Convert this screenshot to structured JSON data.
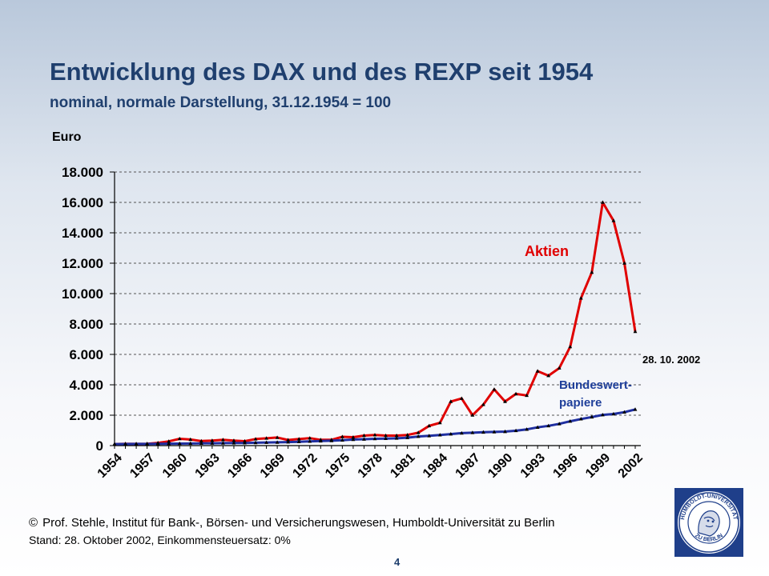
{
  "slide": {
    "title": "Entwicklung des DAX und des REXP seit 1954",
    "subtitle": "nominal, normale Darstellung, 31.12.1954 = 100",
    "copyright_symbol": "©",
    "copyright": "Prof. Stehle, Institut für Bank-, Börsen- und Versicherungswesen, Humboldt-Universität zu Berlin",
    "stand": "Stand: 28. Oktober 2002, Einkommensteuersatz: 0%",
    "page_number": "4",
    "logo_text": "HUMBOLDT-UNIVERSITÄT ZU BERLIN"
  },
  "chart_data": {
    "type": "line",
    "title": "Entwicklung des DAX und des REXP seit 1954",
    "ylabel": "Euro",
    "ylim": [
      0,
      18000
    ],
    "yticks": [
      0,
      2000,
      4000,
      6000,
      8000,
      10000,
      12000,
      14000,
      16000,
      18000
    ],
    "ytick_labels": [
      "0",
      "2.000",
      "4.000",
      "6.000",
      "8.000",
      "10.000",
      "12.000",
      "14.000",
      "16.000",
      "18.000"
    ],
    "x": [
      1954,
      1955,
      1956,
      1957,
      1958,
      1959,
      1960,
      1961,
      1962,
      1963,
      1964,
      1965,
      1966,
      1967,
      1968,
      1969,
      1970,
      1971,
      1972,
      1973,
      1974,
      1975,
      1976,
      1977,
      1978,
      1979,
      1980,
      1981,
      1982,
      1983,
      1984,
      1985,
      1986,
      1987,
      1988,
      1989,
      1990,
      1991,
      1992,
      1993,
      1994,
      1995,
      1996,
      1997,
      1998,
      1999,
      2000,
      2001,
      2002
    ],
    "xtick_labels": [
      "1954",
      "1957",
      "1960",
      "1963",
      "1966",
      "1969",
      "1972",
      "1975",
      "1978",
      "1981",
      "1984",
      "1987",
      "1990",
      "1993",
      "1996",
      "1999",
      "2002"
    ],
    "xtick_values": [
      1954,
      1957,
      1960,
      1963,
      1966,
      1969,
      1972,
      1975,
      1978,
      1981,
      1984,
      1987,
      1990,
      1993,
      1996,
      1999,
      2002
    ],
    "grid": true,
    "series": [
      {
        "name": "Aktien",
        "color": "#e00000",
        "values": [
          100,
          120,
          110,
          120,
          180,
          280,
          450,
          400,
          300,
          330,
          380,
          330,
          290,
          430,
          480,
          530,
          370,
          430,
          490,
          380,
          380,
          580,
          550,
          660,
          700,
          660,
          660,
          700,
          850,
          1300,
          1500,
          2900,
          3100,
          2000,
          2700,
          3700,
          2900,
          3400,
          3300,
          4900,
          4600,
          5100,
          6500,
          9700,
          11400,
          16000,
          14800,
          12000,
          7500
        ]
      },
      {
        "name": "Bundeswertpapiere",
        "color": "#1f2fa0",
        "values": [
          100,
          104,
          108,
          112,
          120,
          126,
          132,
          138,
          146,
          154,
          162,
          168,
          176,
          190,
          205,
          215,
          230,
          255,
          280,
          300,
          320,
          360,
          400,
          420,
          450,
          460,
          480,
          520,
          600,
          640,
          700,
          760,
          820,
          850,
          880,
          900,
          920,
          980,
          1070,
          1200,
          1300,
          1430,
          1600,
          1750,
          1880,
          2020,
          2080,
          2200,
          2380
        ]
      }
    ],
    "annotations": [
      {
        "text": "Aktien"
      },
      {
        "text": "Bundeswert-"
      },
      {
        "text": "papiere"
      },
      {
        "text": "28. 10. 2002"
      }
    ]
  }
}
